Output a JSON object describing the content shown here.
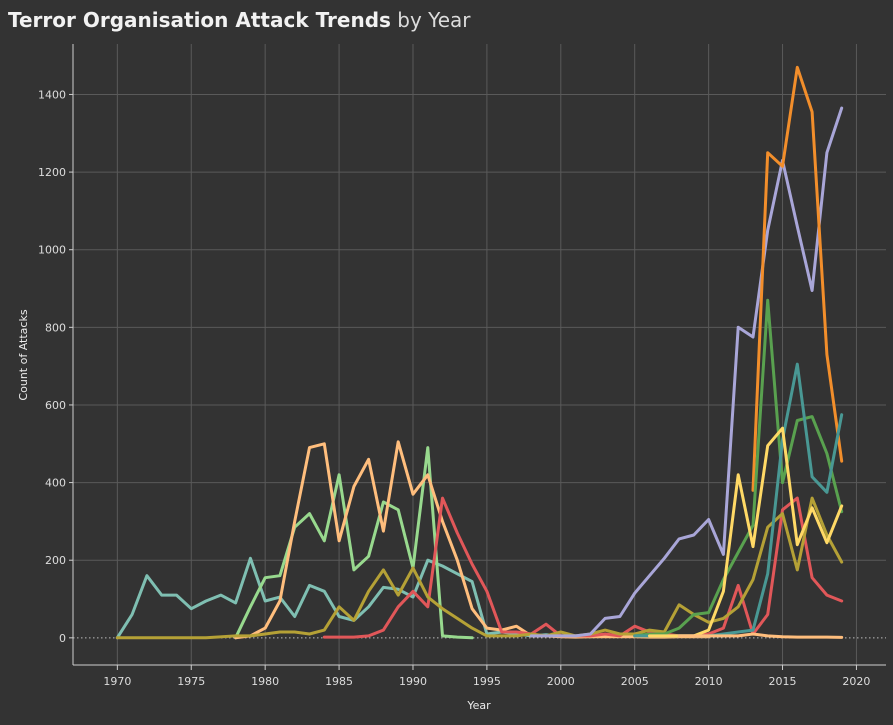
{
  "title_bold": "Terror Organisation Attack Trends",
  "title_light": " by Year",
  "chart_data": {
    "type": "line",
    "title": "Terror Organisation Attack Trends by Year",
    "xlabel": "Year",
    "ylabel": "Count of Attacks",
    "xlim": [
      1967,
      2022
    ],
    "ylim": [
      -70,
      1530
    ],
    "xticks": [
      1970,
      1975,
      1980,
      1985,
      1990,
      1995,
      2000,
      2005,
      2010,
      2015,
      2020
    ],
    "yticks": [
      0,
      200,
      400,
      600,
      800,
      1000,
      1200,
      1400
    ],
    "grid": true,
    "legend": "none",
    "series": [
      {
        "color": "#7fbfb2",
        "x": [
          1970,
          1971,
          1972,
          1973,
          1974,
          1975,
          1976,
          1977,
          1978,
          1979,
          1980,
          1981,
          1982,
          1983,
          1984,
          1985,
          1986,
          1987,
          1988,
          1989,
          1990,
          1991,
          1992,
          1993,
          1994,
          1995,
          1996,
          1997,
          1998,
          1999,
          2000,
          2001,
          2002,
          2003,
          2004,
          2005,
          2006,
          2007,
          2008,
          2009,
          2010,
          2011
        ],
        "values": [
          0,
          60,
          160,
          110,
          110,
          75,
          95,
          110,
          90,
          205,
          95,
          105,
          55,
          135,
          120,
          55,
          45,
          80,
          130,
          125,
          105,
          200,
          185,
          165,
          145,
          10,
          15,
          10,
          5,
          8,
          5,
          5,
          3,
          5,
          5,
          5,
          5,
          5,
          5,
          5,
          5,
          5
        ]
      },
      {
        "color": "#98d98e",
        "x": [
          1978,
          1979,
          1980,
          1981,
          1982,
          1983,
          1984,
          1985,
          1986,
          1987,
          1988,
          1989,
          1990,
          1991,
          1992,
          1993,
          1994
        ],
        "values": [
          0,
          80,
          155,
          160,
          285,
          320,
          250,
          420,
          175,
          210,
          350,
          330,
          180,
          490,
          5,
          2,
          0
        ]
      },
      {
        "color": "#ffbe7d",
        "x": [
          1978,
          1979,
          1980,
          1981,
          1982,
          1983,
          1984,
          1985,
          1986,
          1987,
          1988,
          1989,
          1990,
          1991,
          1992,
          1993,
          1994,
          1995,
          1996,
          1997,
          1998,
          1999,
          2000,
          2001,
          2002,
          2003,
          2004,
          2005,
          2006,
          2007,
          2008,
          2009,
          2010
        ],
        "values": [
          0,
          5,
          25,
          95,
          300,
          490,
          500,
          250,
          390,
          460,
          275,
          505,
          370,
          420,
          300,
          200,
          75,
          25,
          20,
          30,
          5,
          5,
          3,
          2,
          3,
          3,
          3,
          3,
          2,
          2,
          3,
          3,
          3
        ]
      },
      {
        "color": "#e15759",
        "x": [
          1984,
          1985,
          1986,
          1987,
          1988,
          1989,
          1990,
          1991,
          1992,
          1993,
          1994,
          1995,
          1996,
          1997,
          1998,
          1999,
          2000,
          2001,
          2002,
          2003,
          2004,
          2005,
          2006,
          2007,
          2008,
          2009,
          2010,
          2011,
          2012,
          2013,
          2014,
          2015,
          2016,
          2017,
          2018,
          2019
        ],
        "values": [
          2,
          2,
          2,
          5,
          20,
          80,
          120,
          80,
          360,
          270,
          190,
          120,
          15,
          15,
          10,
          35,
          5,
          5,
          5,
          10,
          5,
          30,
          15,
          10,
          5,
          5,
          10,
          25,
          135,
          10,
          60,
          330,
          360,
          155,
          110,
          95
        ]
      },
      {
        "color": "#b5a136",
        "x": [
          1970,
          1972,
          1974,
          1976,
          1978,
          1979,
          1980,
          1981,
          1982,
          1983,
          1984,
          1985,
          1986,
          1987,
          1988,
          1989,
          1990,
          1991,
          1992,
          1993,
          1994,
          1995,
          1996,
          1997,
          1998,
          1999,
          2000,
          2001,
          2002,
          2003,
          2004,
          2005,
          2006,
          2007,
          2008,
          2009,
          2010,
          2011,
          2012,
          2013,
          2014,
          2015,
          2016,
          2017,
          2018,
          2019
        ],
        "values": [
          0,
          0,
          0,
          0,
          5,
          5,
          10,
          15,
          15,
          10,
          20,
          80,
          45,
          120,
          175,
          110,
          180,
          105,
          75,
          50,
          25,
          5,
          5,
          5,
          10,
          5,
          15,
          5,
          10,
          20,
          10,
          10,
          20,
          15,
          85,
          60,
          40,
          50,
          80,
          150,
          285,
          320,
          175,
          360,
          265,
          195
        ]
      },
      {
        "color": "#a9a6d8",
        "x": [
          1998,
          1999,
          2000,
          2001,
          2002,
          2003,
          2004,
          2005,
          2006,
          2007,
          2008,
          2009,
          2010,
          2011,
          2012,
          2013,
          2014,
          2015,
          2016,
          2017,
          2018,
          2019
        ],
        "values": [
          5,
          5,
          5,
          5,
          10,
          50,
          55,
          115,
          160,
          205,
          255,
          265,
          305,
          215,
          800,
          775,
          1050,
          1230,
          1060,
          895,
          1250,
          1365
        ]
      },
      {
        "color": "#f28e2b",
        "x": [
          2013,
          2014,
          2015,
          2016,
          2017,
          2018,
          2019
        ],
        "values": [
          380,
          1250,
          1215,
          1470,
          1355,
          730,
          455
        ]
      },
      {
        "color": "#59a14f",
        "x": [
          2005,
          2006,
          2007,
          2008,
          2009,
          2010,
          2011,
          2012,
          2013,
          2014,
          2015,
          2016,
          2017,
          2018,
          2019
        ],
        "values": [
          5,
          10,
          10,
          25,
          60,
          65,
          150,
          220,
          290,
          870,
          400,
          560,
          570,
          475,
          325
        ]
      },
      {
        "color": "#499894",
        "x": [
          2005,
          2006,
          2007,
          2008,
          2009,
          2010,
          2011,
          2012,
          2013,
          2014,
          2015,
          2016,
          2017,
          2018,
          2019
        ],
        "values": [
          5,
          5,
          5,
          5,
          5,
          5,
          10,
          15,
          20,
          165,
          510,
          705,
          415,
          375,
          575
        ]
      },
      {
        "color": "#ffd966",
        "x": [
          2006,
          2007,
          2008,
          2009,
          2010,
          2011,
          2012,
          2013,
          2014,
          2015,
          2016,
          2017,
          2018,
          2019
        ],
        "values": [
          5,
          5,
          5,
          5,
          20,
          120,
          420,
          235,
          495,
          540,
          240,
          335,
          245,
          340
        ]
      },
      {
        "color": "#ffbe7d",
        "x": [
          2008,
          2009,
          2010,
          2011,
          2012,
          2013,
          2014,
          2015,
          2016,
          2017,
          2018,
          2019
        ],
        "values": [
          5,
          5,
          5,
          5,
          5,
          10,
          5,
          3,
          2,
          2,
          2,
          1
        ]
      }
    ]
  }
}
